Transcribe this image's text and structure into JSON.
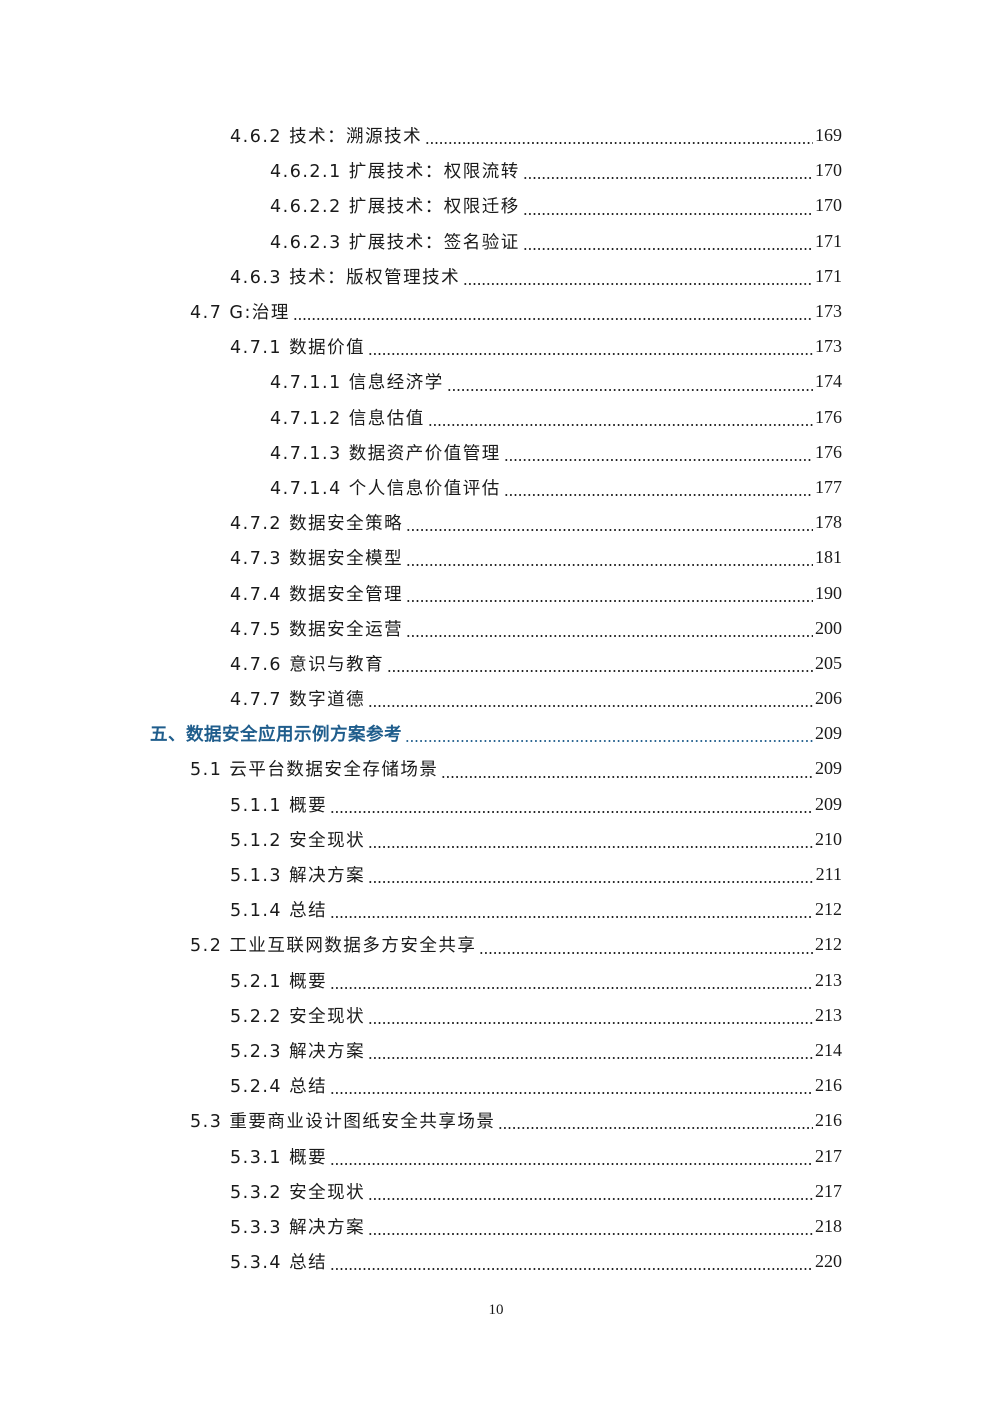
{
  "toc": [
    {
      "level": 3,
      "label": "4.6.2 技术：溯源技术",
      "page": "169"
    },
    {
      "level": 4,
      "label": "4.6.2.1 扩展技术：权限流转",
      "page": "170"
    },
    {
      "level": 4,
      "label": "4.6.2.2 扩展技术：权限迁移",
      "page": "170"
    },
    {
      "level": 4,
      "label": "4.6.2.3 扩展技术：签名验证",
      "page": "171"
    },
    {
      "level": 3,
      "label": "4.6.3 技术：版权管理技术",
      "page": "171"
    },
    {
      "level": 2,
      "label": "4.7 G:治理",
      "page": "173"
    },
    {
      "level": 3,
      "label": "4.7.1 数据价值",
      "page": "173"
    },
    {
      "level": 4,
      "label": "4.7.1.1 信息经济学",
      "page": "174"
    },
    {
      "level": 4,
      "label": "4.7.1.2 信息估值",
      "page": "176"
    },
    {
      "level": 4,
      "label": "4.7.1.3 数据资产价值管理",
      "page": "176"
    },
    {
      "level": 4,
      "label": "4.7.1.4 个人信息价值评估",
      "page": "177"
    },
    {
      "level": 3,
      "label": "4.7.2 数据安全策略",
      "page": "178"
    },
    {
      "level": 3,
      "label": "4.7.3 数据安全模型",
      "page": "181"
    },
    {
      "level": 3,
      "label": "4.7.4 数据安全管理",
      "page": "190"
    },
    {
      "level": 3,
      "label": "4.7.5 数据安全运营",
      "page": "200"
    },
    {
      "level": 3,
      "label": "4.7.6 意识与教育",
      "page": "205"
    },
    {
      "level": 3,
      "label": "4.7.7 数字道德",
      "page": "206"
    },
    {
      "level": 1,
      "label": "五、数据安全应用示例方案参考",
      "page": "209"
    },
    {
      "level": 2,
      "label": "5.1 云平台数据安全存储场景",
      "page": "209"
    },
    {
      "level": 3,
      "label": "5.1.1 概要",
      "page": "209"
    },
    {
      "level": 3,
      "label": "5.1.2 安全现状",
      "page": "210"
    },
    {
      "level": 3,
      "label": "5.1.3 解决方案",
      "page": "211"
    },
    {
      "level": 3,
      "label": "5.1.4 总结",
      "page": "212"
    },
    {
      "level": 2,
      "label": "5.2 工业互联网数据多方安全共享",
      "page": "212"
    },
    {
      "level": 3,
      "label": "5.2.1 概要",
      "page": "213"
    },
    {
      "level": 3,
      "label": "5.2.2 安全现状",
      "page": "213"
    },
    {
      "level": 3,
      "label": "5.2.3 解决方案",
      "page": "214"
    },
    {
      "level": 3,
      "label": "5.2.4 总结",
      "page": "216"
    },
    {
      "level": 2,
      "label": "5.3 重要商业设计图纸安全共享场景",
      "page": "216"
    },
    {
      "level": 3,
      "label": "5.3.1 概要",
      "page": "217"
    },
    {
      "level": 3,
      "label": "5.3.2 安全现状",
      "page": "217"
    },
    {
      "level": 3,
      "label": "5.3.3 解决方案",
      "page": "218"
    },
    {
      "level": 3,
      "label": "5.3.4 总结",
      "page": "220"
    }
  ],
  "footer": {
    "page_number": "10"
  },
  "colors": {
    "heading": "#1f5d8c",
    "text": "#1a1a1a"
  }
}
